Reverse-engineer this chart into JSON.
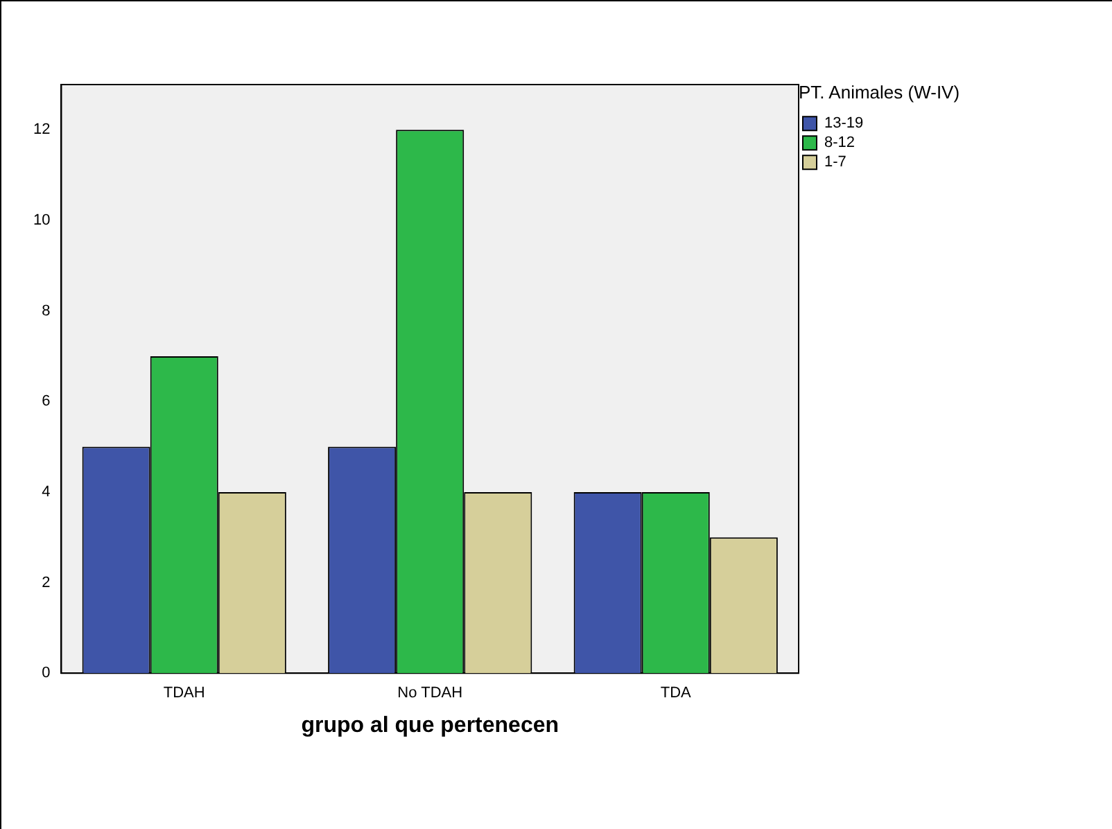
{
  "chart_data": {
    "type": "bar",
    "xlabel": "grupo al que pertenecen",
    "legend_title": "PT. Animales (W-IV)",
    "categories": [
      "TDAH",
      "No TDAH",
      "TDA"
    ],
    "series": [
      {
        "name": "13-19",
        "color": "#3f55a8",
        "values": [
          5,
          5,
          4
        ]
      },
      {
        "name": "8-12",
        "color": "#2db84a",
        "values": [
          7,
          12,
          4
        ]
      },
      {
        "name": "1-7",
        "color": "#d6cf9a",
        "values": [
          4,
          4,
          3
        ]
      }
    ],
    "ylim": [
      0,
      13
    ],
    "yticks": [
      0,
      2,
      4,
      6,
      8,
      10,
      12
    ],
    "grid": false,
    "legend": "top right"
  }
}
